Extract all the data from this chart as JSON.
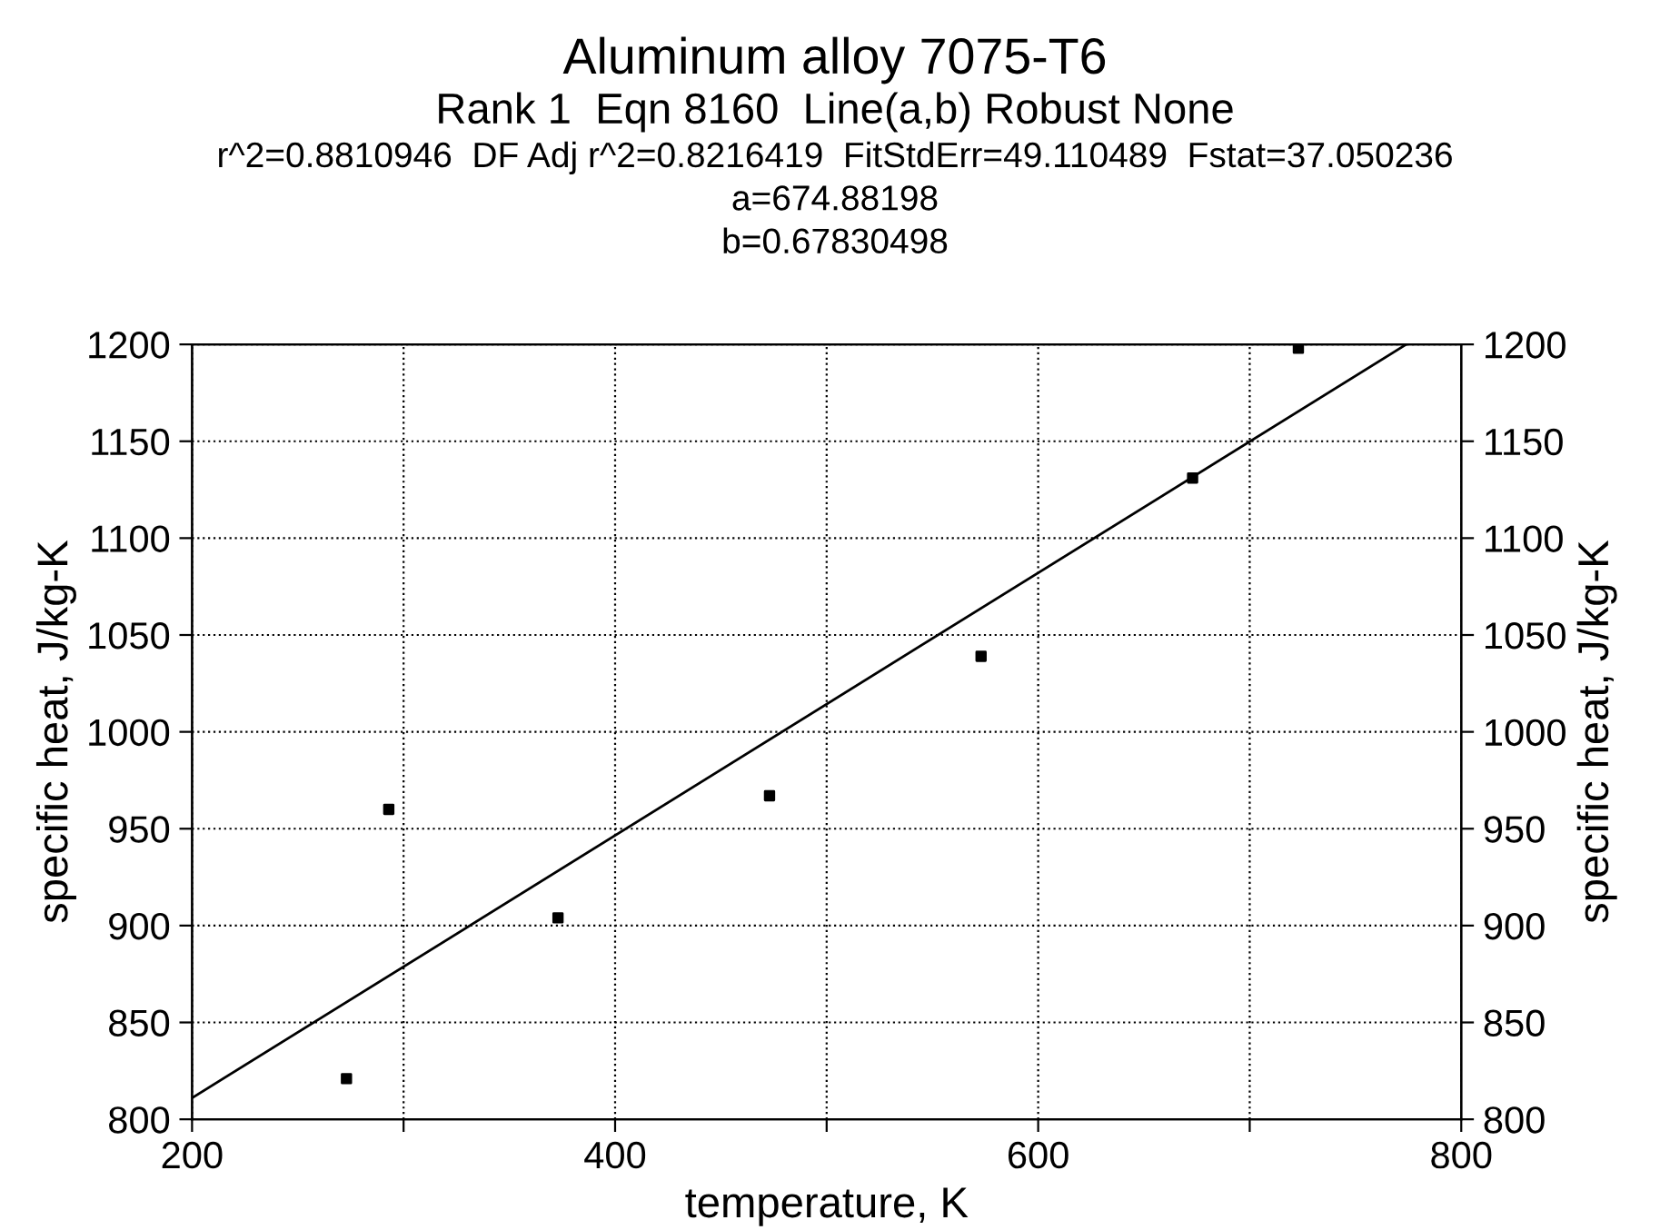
{
  "chart_data": {
    "type": "scatter",
    "title": "Aluminum alloy 7075-T6",
    "subtitle": "Rank 1  Eqn 8160  Line(a,b) Robust None",
    "annotations": [
      "r^2=0.8810946  DF Adj r^2=0.8216419  FitStdErr=49.110489  Fstat=37.050236",
      "a=674.88198",
      "b=0.67830498"
    ],
    "xlabel": "temperature, K",
    "ylabel": "specific heat, J/kg-K",
    "y2label": "specific heat, J/kg-K",
    "series": [
      {
        "color": "#000000",
        "marker": "square",
        "x": [
          273,
          293,
          373,
          473,
          573,
          673,
          723
        ],
        "values": [
          821,
          960,
          904,
          967,
          1039,
          1131,
          1198
        ]
      },
      {
        "type": "line",
        "color": "#000000",
        "marker": "none",
        "line_style": "solid",
        "x": [
          200,
          774
        ],
        "values": [
          811,
          1200
        ]
      }
    ],
    "xlim": [
      200,
      800
    ],
    "xticks": [
      200,
      {
        "value": 300,
        "label": null
      },
      400,
      {
        "value": 500,
        "label": null
      },
      600,
      {
        "value": 700,
        "label": null
      },
      800
    ],
    "ylim": [
      800,
      1200
    ],
    "yticks": [
      800,
      850,
      900,
      950,
      1000,
      1050,
      1100,
      1150,
      1200
    ],
    "y2lim": [
      800,
      1200
    ],
    "y2ticks": [
      800,
      850,
      900,
      950,
      1000,
      1050,
      1100,
      1150,
      1200
    ],
    "grid": true,
    "legend": false
  }
}
